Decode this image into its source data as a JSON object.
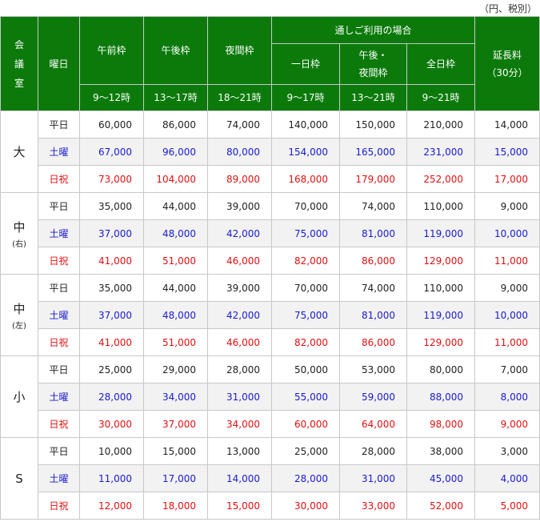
{
  "unit_note": "（円、税別）",
  "header": {
    "room": "会\n議\n室",
    "day": "曜日",
    "morning": "午前枠",
    "afternoon": "午後枠",
    "night": "夜間枠",
    "through_group": "通しご利用の場合",
    "full_day": "一日枠",
    "afternoon_night": "午後・\n夜間枠",
    "all_day": "全日枠",
    "extension": "延長料\n（30分）",
    "morning_time": "9〜12時",
    "afternoon_time": "13〜17時",
    "night_time": "18〜21時",
    "full_day_time": "9〜17時",
    "afternoon_night_time": "13〜21時",
    "all_day_time": "9〜21時"
  },
  "rooms": [
    {
      "name": "大",
      "sub": "",
      "rows": [
        {
          "day": "平日",
          "values": [
            "60,000",
            "86,000",
            "74,000",
            "140,000",
            "150,000",
            "210,000",
            "14,000"
          ]
        },
        {
          "day": "土曜",
          "values": [
            "67,000",
            "96,000",
            "80,000",
            "154,000",
            "165,000",
            "231,000",
            "15,000"
          ]
        },
        {
          "day": "日祝",
          "values": [
            "73,000",
            "104,000",
            "89,000",
            "168,000",
            "179,000",
            "252,000",
            "17,000"
          ]
        }
      ]
    },
    {
      "name": "中",
      "sub": "(右)",
      "rows": [
        {
          "day": "平日",
          "values": [
            "35,000",
            "44,000",
            "39,000",
            "70,000",
            "74,000",
            "110,000",
            "9,000"
          ]
        },
        {
          "day": "土曜",
          "values": [
            "37,000",
            "48,000",
            "42,000",
            "75,000",
            "81,000",
            "119,000",
            "10,000"
          ]
        },
        {
          "day": "日祝",
          "values": [
            "41,000",
            "51,000",
            "46,000",
            "82,000",
            "86,000",
            "129,000",
            "11,000"
          ]
        }
      ]
    },
    {
      "name": "中",
      "sub": "(左)",
      "rows": [
        {
          "day": "平日",
          "values": [
            "35,000",
            "44,000",
            "39,000",
            "70,000",
            "74,000",
            "110,000",
            "9,000"
          ]
        },
        {
          "day": "土曜",
          "values": [
            "37,000",
            "48,000",
            "42,000",
            "75,000",
            "81,000",
            "119,000",
            "10,000"
          ]
        },
        {
          "day": "日祝",
          "values": [
            "41,000",
            "51,000",
            "46,000",
            "82,000",
            "86,000",
            "129,000",
            "11,000"
          ]
        }
      ]
    },
    {
      "name": "小",
      "sub": "",
      "rows": [
        {
          "day": "平日",
          "values": [
            "25,000",
            "29,000",
            "28,000",
            "50,000",
            "53,000",
            "80,000",
            "7,000"
          ]
        },
        {
          "day": "土曜",
          "values": [
            "28,000",
            "34,000",
            "31,000",
            "55,000",
            "59,000",
            "88,000",
            "8,000"
          ]
        },
        {
          "day": "日祝",
          "values": [
            "30,000",
            "37,000",
            "34,000",
            "60,000",
            "64,000",
            "98,000",
            "9,000"
          ]
        }
      ]
    },
    {
      "name": "S",
      "sub": "",
      "rows": [
        {
          "day": "平日",
          "values": [
            "10,000",
            "15,000",
            "13,000",
            "25,000",
            "28,000",
            "38,000",
            "3,000"
          ]
        },
        {
          "day": "土曜",
          "values": [
            "11,000",
            "17,000",
            "14,000",
            "28,000",
            "31,000",
            "45,000",
            "4,000"
          ]
        },
        {
          "day": "日祝",
          "values": [
            "12,000",
            "18,000",
            "15,000",
            "30,000",
            "33,000",
            "52,000",
            "5,000"
          ]
        }
      ]
    }
  ],
  "colors": {
    "header_bg": "#0b7a0b",
    "saturday": "#1a1acc",
    "holiday": "#e01010"
  }
}
